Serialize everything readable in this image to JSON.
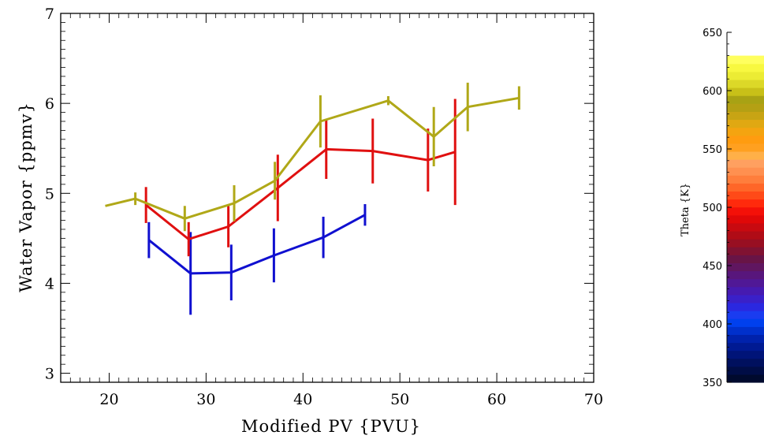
{
  "chart_data": {
    "type": "line",
    "xlabel": "Modified PV {PVU}",
    "ylabel": "Water Vapor {ppmv}",
    "xlim": [
      15,
      70
    ],
    "ylim": [
      2.9,
      7.0
    ],
    "x_ticks": [
      20,
      30,
      40,
      50,
      60,
      70
    ],
    "y_ticks": [
      3,
      4,
      5,
      6,
      7
    ],
    "grid": false,
    "series": [
      {
        "color": "#1010d0",
        "points": [
          {
            "x": 24.1,
            "y": 4.48,
            "err": 0.2
          },
          {
            "x": 28.4,
            "y": 4.11,
            "err": 0.46
          },
          {
            "x": 32.6,
            "y": 4.12,
            "err": 0.31
          },
          {
            "x": 37.0,
            "y": 4.31,
            "err": 0.3
          },
          {
            "x": 42.1,
            "y": 4.51,
            "err": 0.23
          },
          {
            "x": 46.4,
            "y": 4.76,
            "err": 0.12
          }
        ]
      },
      {
        "color": "#e01010",
        "points": [
          {
            "x": 23.8,
            "y": 4.87,
            "err": 0.2
          },
          {
            "x": 28.2,
            "y": 4.49,
            "err": 0.19
          },
          {
            "x": 32.3,
            "y": 4.63,
            "err": 0.23
          },
          {
            "x": 37.4,
            "y": 5.06,
            "err": 0.37
          },
          {
            "x": 42.4,
            "y": 5.49,
            "err": 0.33
          },
          {
            "x": 47.2,
            "y": 5.47,
            "err": 0.36
          },
          {
            "x": 52.9,
            "y": 5.37,
            "err": 0.35
          },
          {
            "x": 55.7,
            "y": 5.46,
            "err": 0.59
          }
        ]
      },
      {
        "color": "#b0a818",
        "points": [
          {
            "x": 19.6,
            "y": 4.86,
            "err": 0
          },
          {
            "x": 22.7,
            "y": 4.94,
            "err": 0.07
          },
          {
            "x": 27.8,
            "y": 4.72,
            "err": 0.14
          },
          {
            "x": 32.9,
            "y": 4.89,
            "err": 0.2
          },
          {
            "x": 37.1,
            "y": 5.14,
            "err": 0.21
          },
          {
            "x": 41.8,
            "y": 5.8,
            "err": 0.29
          },
          {
            "x": 48.8,
            "y": 6.03,
            "err": 0.05
          },
          {
            "x": 53.5,
            "y": 5.63,
            "err": 0.33
          },
          {
            "x": 57.0,
            "y": 5.96,
            "err": 0.27
          },
          {
            "x": 62.3,
            "y": 6.06,
            "err": 0.13
          }
        ]
      }
    ]
  },
  "colorbar": {
    "title": "Theta {K}",
    "range": [
      350,
      650
    ],
    "filled_range": [
      350,
      630
    ],
    "ticks": [
      350,
      400,
      450,
      500,
      550,
      600,
      650
    ],
    "colors": [
      "#000a2e",
      "#000d46",
      "#00105e",
      "#001478",
      "#001a92",
      "#0022ac",
      "#0030cc",
      "#0040ee",
      "#1a3cf0",
      "#2a28e0",
      "#3a20c8",
      "#461ab0",
      "#501896",
      "#58167c",
      "#601660",
      "#681446",
      "#801232",
      "#980f22",
      "#b00c16",
      "#c80a10",
      "#e00808",
      "#f41008",
      "#ff2a0c",
      "#ff4a18",
      "#ff6628",
      "#ff7e3c",
      "#ff9050",
      "#ffa060",
      "#ffb048",
      "#ffa020",
      "#ff9c10",
      "#f4a410",
      "#e0a812",
      "#c8a414",
      "#b4a014",
      "#a8a214",
      "#c8c018",
      "#dcd828",
      "#ecec34",
      "#f8f840",
      "#ffff5e"
    ]
  }
}
